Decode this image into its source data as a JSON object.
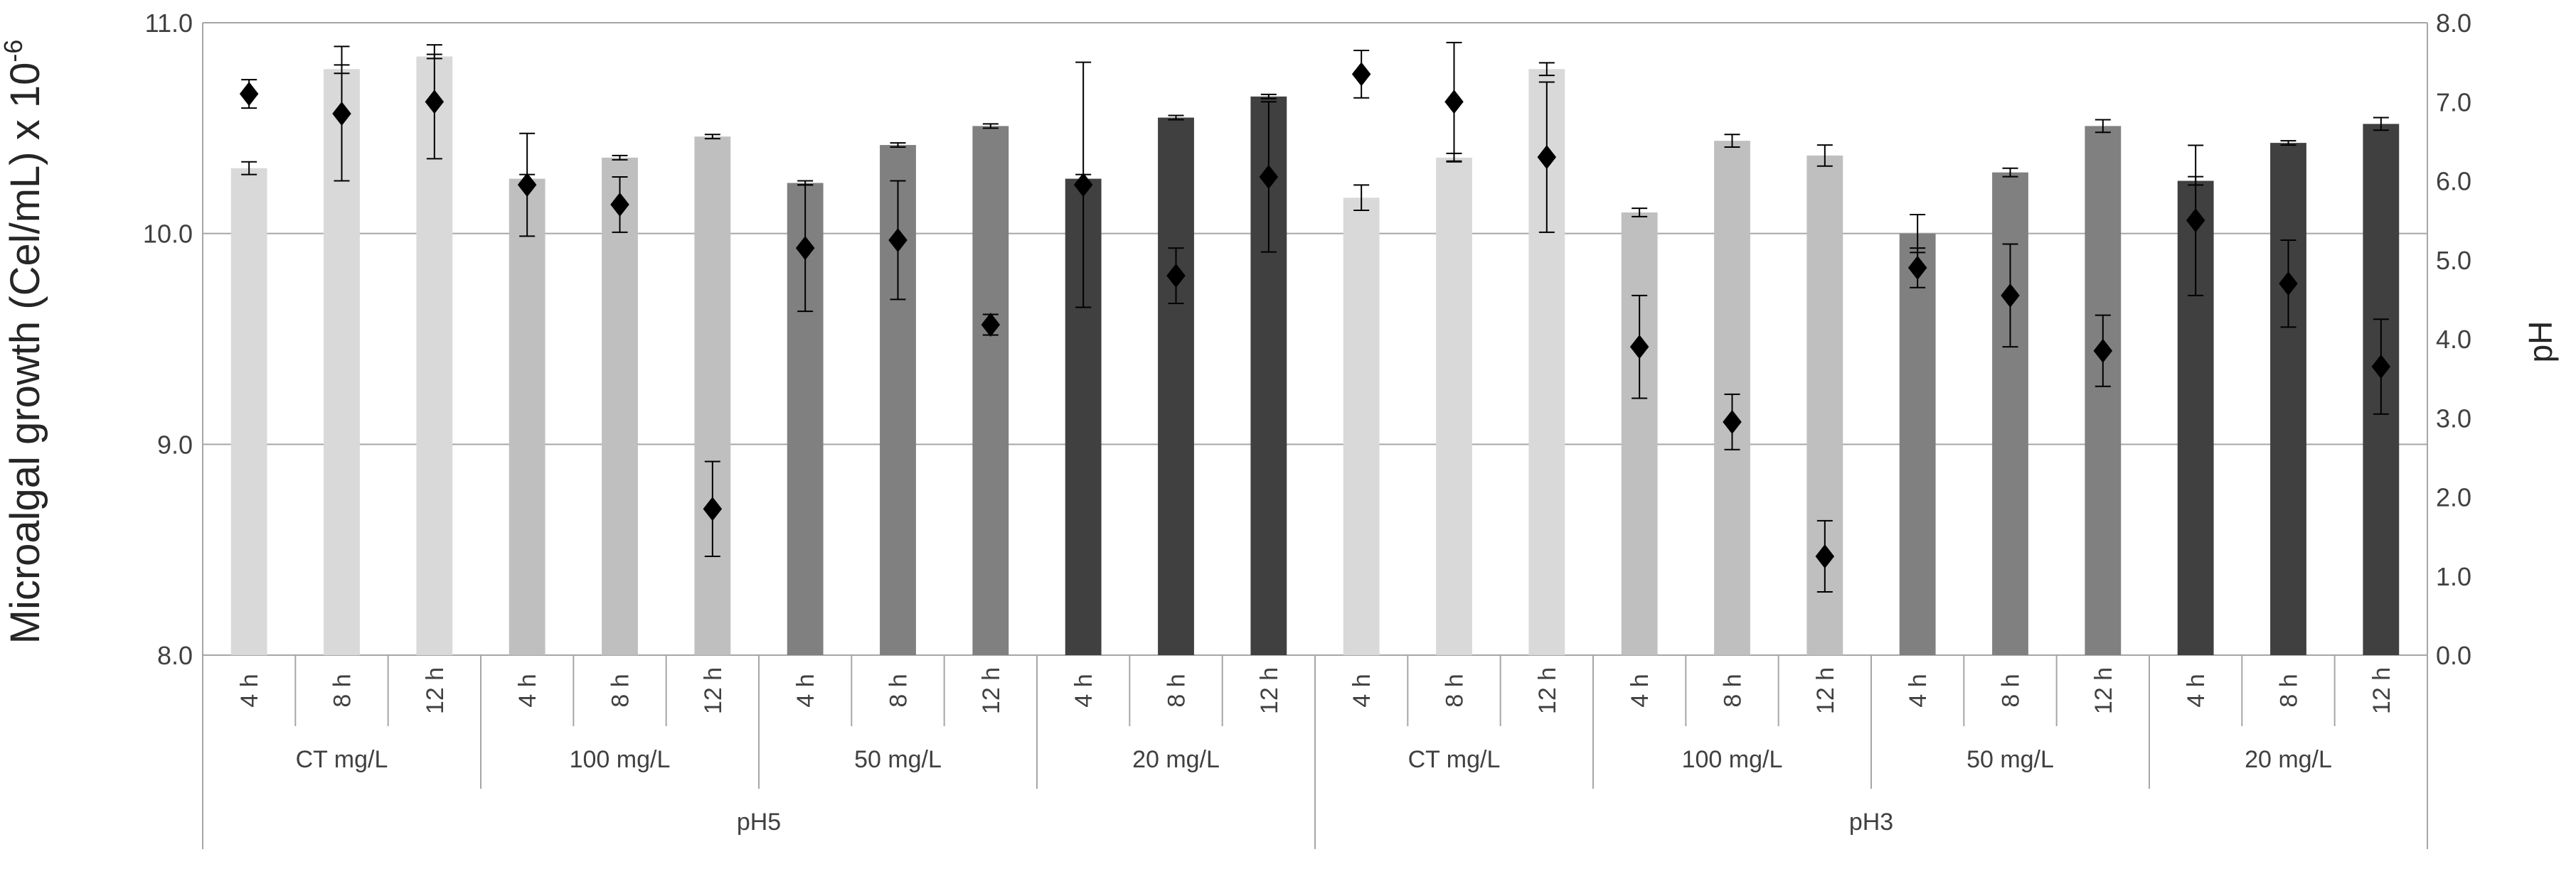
{
  "chart_data": {
    "type": "bar",
    "ylabel": "Microalgal growth (Cel/mL) x 10",
    "ylabel_exp": "-6",
    "y2label": "pH",
    "ylim": [
      8.0,
      11.0
    ],
    "y2lim": [
      0.0,
      8.0
    ],
    "yticks": [
      "8.0",
      "9.0",
      "10.0",
      "11.0"
    ],
    "y2ticks": [
      "0.0",
      "1.0",
      "2.0",
      "3.0",
      "4.0",
      "5.0",
      "6.0",
      "7.0",
      "8.0"
    ],
    "grid": true,
    "groups_outer": [
      "pH5",
      "pH3"
    ],
    "groups_inner": [
      "CT mg/L",
      "100 mg/L",
      "50 mg/L",
      "20 mg/L"
    ],
    "times": [
      "4 h",
      "8 h",
      "12 h"
    ],
    "bar_colors": [
      "#d9d9d9",
      "#bfbfbf",
      "#808080",
      "#404040"
    ],
    "marker_color": "#000000",
    "growth": [
      [
        [
          10.31,
          0.03
        ],
        [
          10.78,
          0.02
        ],
        [
          10.84,
          0.01
        ]
      ],
      [
        [
          10.26,
          0.02
        ],
        [
          10.36,
          0.01
        ],
        [
          10.46,
          0.01
        ]
      ],
      [
        [
          10.24,
          0.01
        ],
        [
          10.42,
          0.01
        ],
        [
          10.51,
          0.01
        ]
      ],
      [
        [
          10.26,
          0.02
        ],
        [
          10.55,
          0.01
        ],
        [
          10.65,
          0.01
        ]
      ],
      [
        [
          10.17,
          0.06
        ],
        [
          10.36,
          0.02
        ],
        [
          10.78,
          0.03
        ]
      ],
      [
        [
          10.1,
          0.02
        ],
        [
          10.44,
          0.03
        ],
        [
          10.37,
          0.05
        ]
      ],
      [
        [
          10.0,
          0.09
        ],
        [
          10.29,
          0.02
        ],
        [
          10.51,
          0.03
        ]
      ],
      [
        [
          10.25,
          0.02
        ],
        [
          10.43,
          0.01
        ],
        [
          10.52,
          0.03
        ]
      ]
    ],
    "ph": [
      [
        [
          7.1,
          0.18
        ],
        [
          6.85,
          0.85
        ],
        [
          7.0,
          0.72
        ]
      ],
      [
        [
          5.95,
          0.65
        ],
        [
          5.7,
          0.35
        ],
        [
          1.85,
          0.6
        ]
      ],
      [
        [
          5.15,
          0.8
        ],
        [
          5.25,
          0.75
        ],
        [
          4.18,
          0.13
        ]
      ],
      [
        [
          5.95,
          1.55
        ],
        [
          4.8,
          0.35
        ],
        [
          6.05,
          0.95
        ]
      ],
      [
        [
          7.35,
          0.3
        ],
        [
          7.0,
          0.75
        ],
        [
          6.3,
          0.95
        ]
      ],
      [
        [
          3.9,
          0.65
        ],
        [
          2.95,
          0.35
        ],
        [
          1.25,
          0.45
        ]
      ],
      [
        [
          4.9,
          0.25
        ],
        [
          4.55,
          0.65
        ],
        [
          3.85,
          0.45
        ]
      ],
      [
        [
          5.5,
          0.95
        ],
        [
          4.7,
          0.55
        ],
        [
          3.65,
          0.6
        ]
      ]
    ]
  }
}
